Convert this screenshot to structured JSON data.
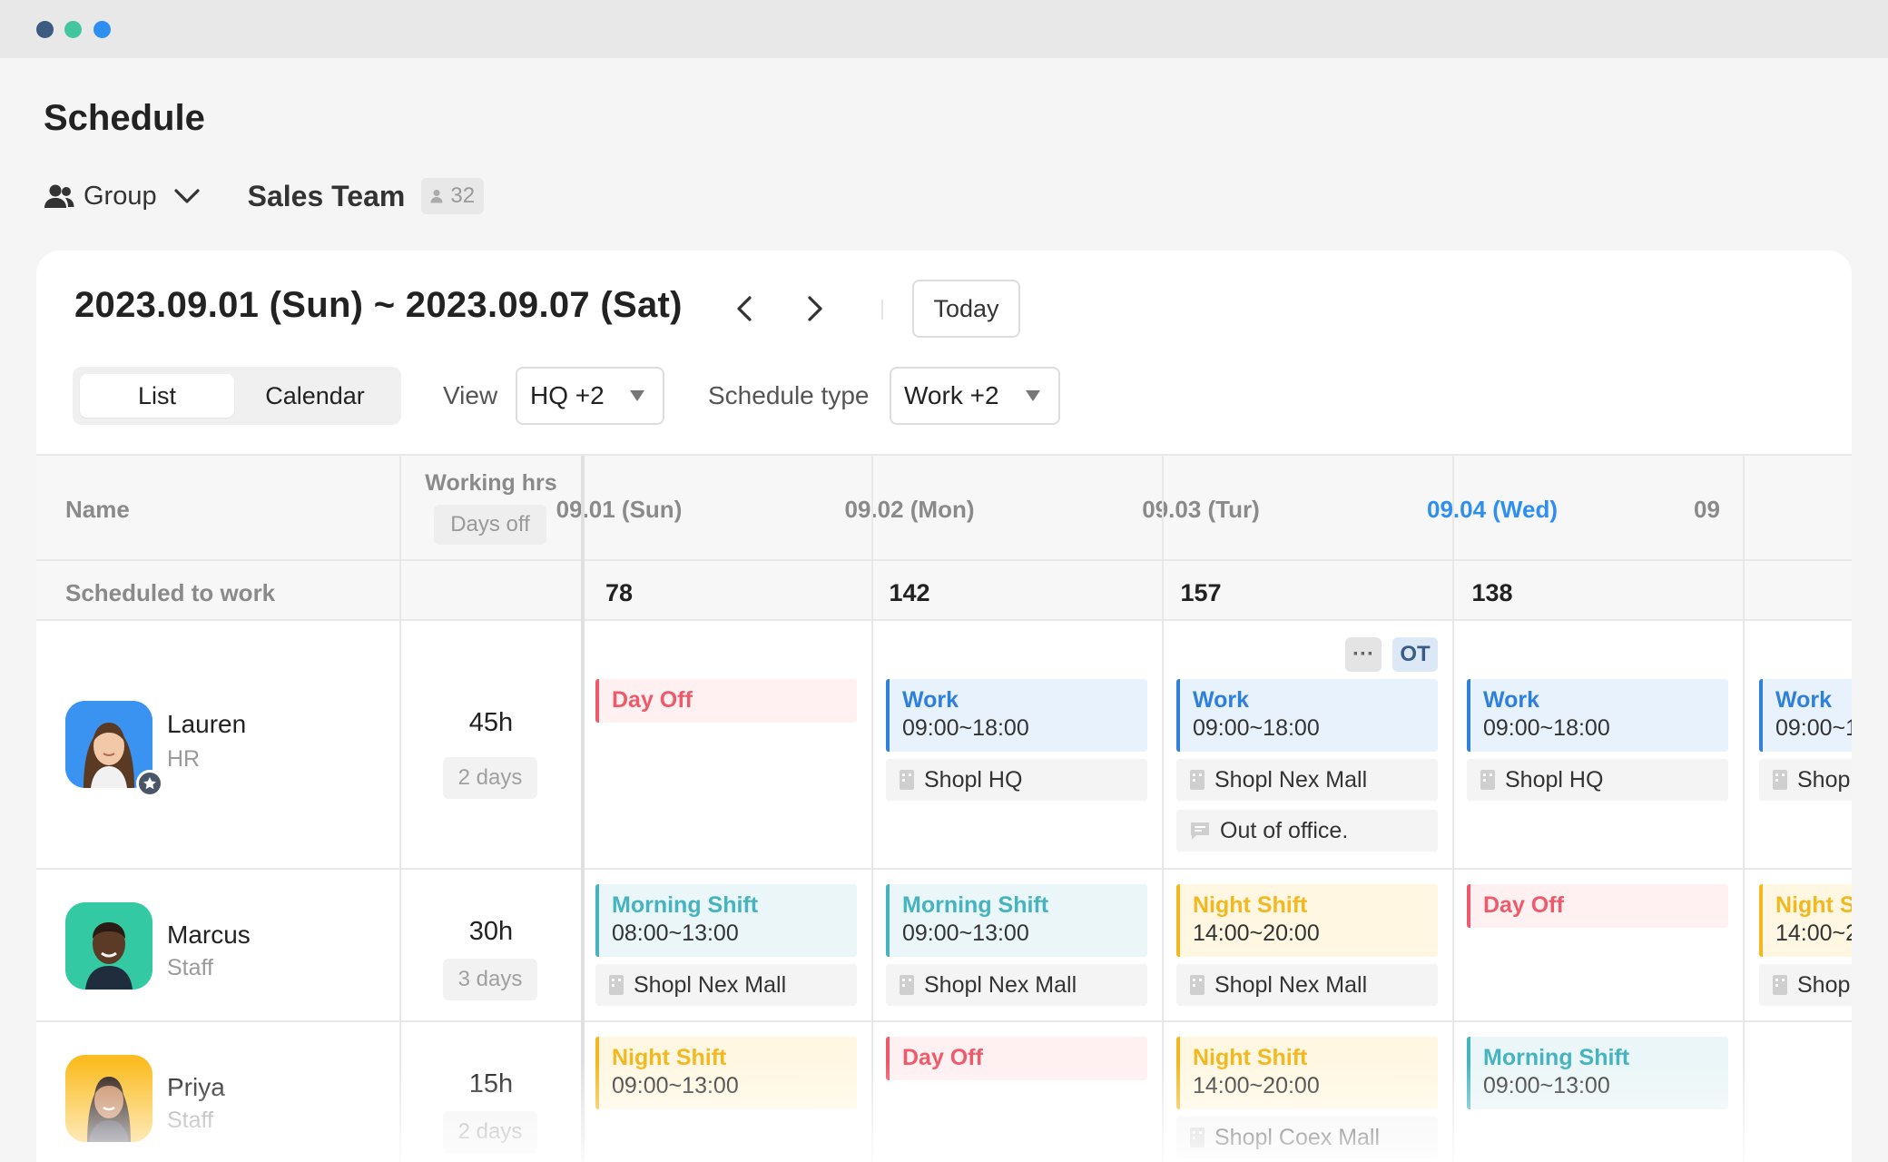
{
  "window": {
    "dots": [
      "#3d5a80",
      "#45c4a0",
      "#2f8ff0"
    ]
  },
  "page": {
    "title": "Schedule"
  },
  "group": {
    "label": "Group",
    "team": "Sales Team",
    "member_count": "32"
  },
  "toolbar": {
    "date_range": "2023.09.01 (Sun) ~ 2023.09.07 (Sat)",
    "today_label": "Today",
    "tabs": {
      "list": "List",
      "calendar": "Calendar"
    },
    "view_label": "View",
    "view_value": "HQ +2",
    "stype_label": "Schedule type",
    "stype_value": "Work +2"
  },
  "table": {
    "headers": {
      "name": "Name",
      "working_hrs": "Working hrs",
      "days_off": "Days off"
    },
    "days": [
      "09.01 (Sun)",
      "09.02 (Mon)",
      "09.03 (Tur)",
      "09.04 (Wed)",
      "09"
    ],
    "today_index": 3,
    "scheduled": {
      "label": "Scheduled to work",
      "counts": [
        "78",
        "142",
        "157",
        "138"
      ]
    },
    "people": [
      {
        "name": "Lauren",
        "role": "HR",
        "hours": "45h",
        "days_off": "2 days",
        "admin_badge": "star-icon",
        "cells": [
          {
            "shift": {
              "type": "dayoff",
              "title": "Day Off"
            }
          },
          {
            "shift": {
              "type": "work",
              "title": "Work",
              "time": "09:00~18:00"
            },
            "loc": "Shopl HQ"
          },
          {
            "badges": [
              "···",
              "OT"
            ],
            "shift": {
              "type": "work",
              "title": "Work",
              "time": "09:00~18:00"
            },
            "loc": "Shopl Nex Mall",
            "note": "Out of office."
          },
          {
            "shift": {
              "type": "work",
              "title": "Work",
              "time": "09:00~18:00"
            },
            "loc": "Shopl HQ"
          },
          {
            "shift": {
              "type": "work",
              "title": "Work",
              "time": "09:00~1"
            },
            "loc": "Shop"
          }
        ]
      },
      {
        "name": "Marcus",
        "role": "Staff",
        "hours": "30h",
        "days_off": "3 days",
        "cells": [
          {
            "shift": {
              "type": "morning",
              "title": "Morning Shift",
              "time": "08:00~13:00"
            },
            "loc": "Shopl Nex Mall"
          },
          {
            "shift": {
              "type": "morning",
              "title": "Morning Shift",
              "time": "09:00~13:00"
            },
            "loc": "Shopl Nex Mall"
          },
          {
            "shift": {
              "type": "night",
              "title": "Night Shift",
              "time": "14:00~20:00"
            },
            "loc": "Shopl Nex Mall"
          },
          {
            "shift": {
              "type": "dayoff",
              "title": "Day Off"
            }
          },
          {
            "shift": {
              "type": "night",
              "title": "Night Sh",
              "time": "14:00~2"
            },
            "loc": "Shop"
          }
        ]
      },
      {
        "name": "Priya",
        "role": "Staff",
        "hours": "15h",
        "days_off": "2 days",
        "cells": [
          {
            "shift": {
              "type": "night",
              "title": "Night Shift",
              "time": "09:00~13:00"
            }
          },
          {
            "shift": {
              "type": "dayoff",
              "title": "Day Off"
            }
          },
          {
            "shift": {
              "type": "night",
              "title": "Night Shift",
              "time": "14:00~20:00"
            },
            "loc": "Shopl Coex Mall"
          },
          {
            "shift": {
              "type": "morning",
              "title": "Morning Shift",
              "time": "09:00~13:00"
            }
          }
        ]
      }
    ]
  },
  "colors": {
    "accent": "#2f8ff0",
    "work": "#2f80d8",
    "dayoff": "#ef5a6a",
    "morning": "#45b3c0",
    "night": "#f1b820"
  }
}
